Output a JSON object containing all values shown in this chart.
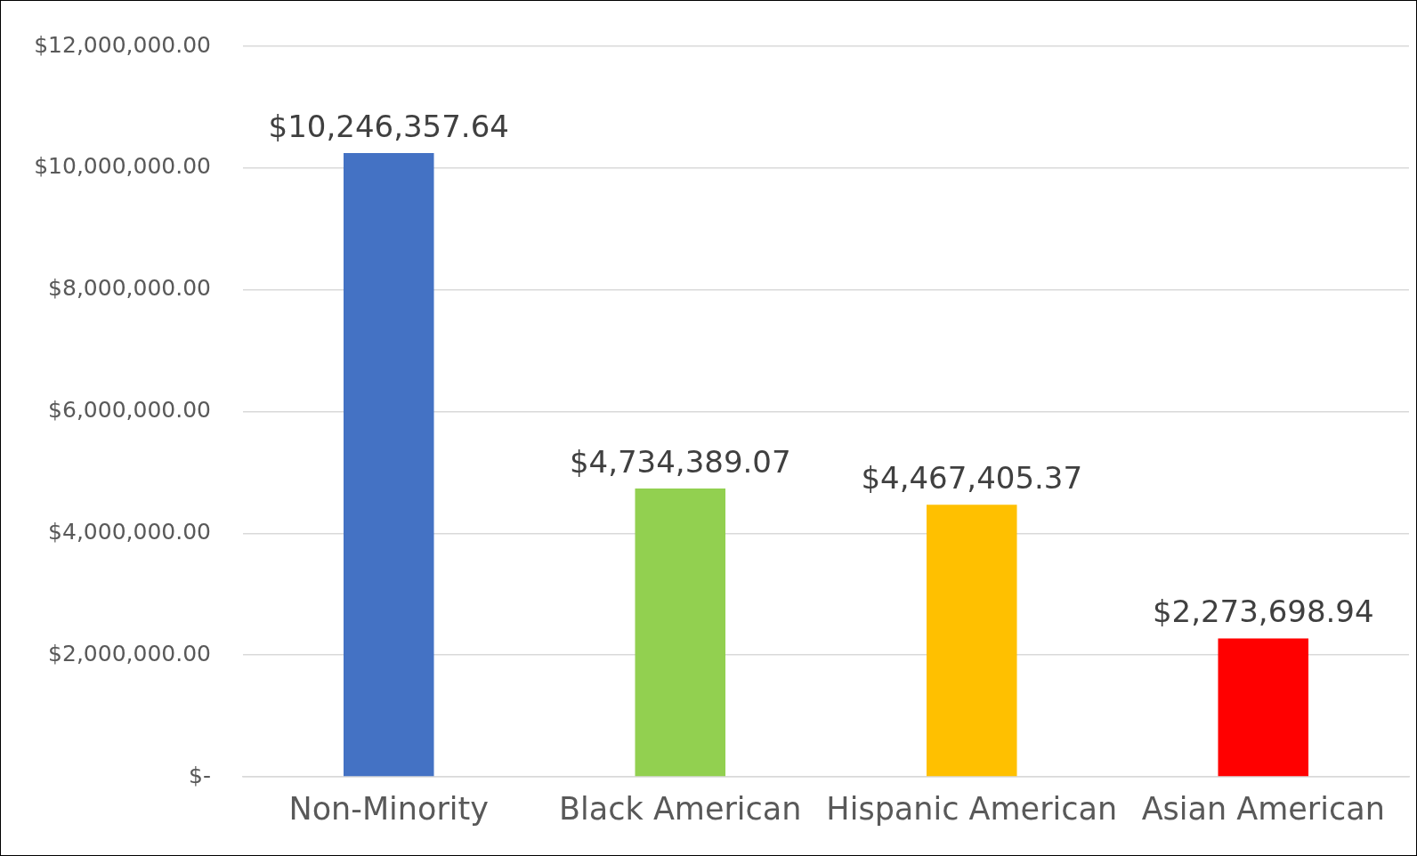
{
  "chart_data": {
    "type": "bar",
    "categories": [
      "Non-Minority",
      "Black American",
      "Hispanic American",
      "Asian American"
    ],
    "values": [
      10246357.64,
      4734389.07,
      4467405.37,
      2273698.94
    ],
    "colors": [
      "#4472c4",
      "#92d050",
      "#ffc000",
      "#ff0000"
    ],
    "value_labels": [
      "$10,246,357.64",
      "$4,734,389.07",
      "$4,467,405.37",
      "$2,273,698.94"
    ],
    "ylim": [
      0,
      12000000
    ],
    "yticks": [
      {
        "value": 0,
        "label": "$-"
      },
      {
        "value": 2000000,
        "label": "$2,000,000.00"
      },
      {
        "value": 4000000,
        "label": "$4,000,000.00"
      },
      {
        "value": 6000000,
        "label": "$6,000,000.00"
      },
      {
        "value": 8000000,
        "label": "$8,000,000.00"
      },
      {
        "value": 10000000,
        "label": "$10,000,000.00"
      },
      {
        "value": 12000000,
        "label": "$12,000,000.00"
      }
    ],
    "grid": "y",
    "legend": false
  }
}
